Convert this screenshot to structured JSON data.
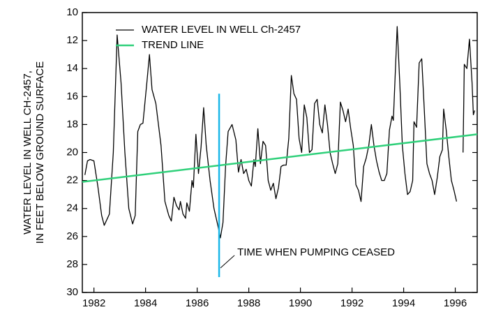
{
  "chart_data": {
    "type": "line",
    "y_label_lines": [
      "WATER LEVEL IN WELL CH-2457,",
      "IN FEET BELOW GROUND SURFACE"
    ],
    "xlim": [
      1981.55,
      1996.85
    ],
    "xticks": [
      1982,
      1984,
      1986,
      1988,
      1990,
      1992,
      1994,
      1996
    ],
    "ylim": [
      10,
      30
    ],
    "y_inverted": true,
    "yticks": [
      10,
      12,
      14,
      16,
      18,
      20,
      22,
      24,
      26,
      28,
      30
    ],
    "legend": "top-left",
    "series": [
      {
        "name": "WATER LEVEL IN WELL Ch-2457",
        "color": "#000000",
        "x": [
          1981.65,
          1981.75,
          1981.85,
          1982.0,
          1982.15,
          1982.3,
          1982.4,
          1982.6,
          1982.75,
          1982.9,
          1983.05,
          1983.2,
          1983.35,
          1983.5,
          1983.6,
          1983.7,
          1983.8,
          1983.9,
          1984.05,
          1984.15,
          1984.25,
          1984.4,
          1984.6,
          1984.75,
          1984.9,
          1985.0,
          1985.1,
          1985.2,
          1985.3,
          1985.35,
          1985.45,
          1985.55,
          1985.6,
          1985.7,
          1985.8,
          1985.85,
          1985.95,
          1986.05,
          1986.15,
          1986.25,
          1986.35,
          1986.5,
          1986.65,
          1986.8,
          1986.9,
          1987.0,
          1987.1,
          1987.2,
          1987.35,
          1987.5,
          1987.6,
          1987.7,
          1987.8,
          1987.9,
          1988.0,
          1988.1,
          1988.2,
          1988.25,
          1988.35,
          1988.45,
          1988.55,
          1988.65,
          1988.75,
          1988.85,
          1988.95,
          1989.05,
          1989.15,
          1989.25,
          1989.35,
          1989.45,
          1989.55,
          1989.65,
          1989.75,
          1989.85,
          1989.95,
          1990.05,
          1990.15,
          1990.25,
          1990.35,
          1990.45,
          1990.55,
          1990.65,
          1990.75,
          1990.85,
          1990.95,
          1991.05,
          1991.15,
          1991.25,
          1991.35,
          1991.45,
          1991.55,
          1991.65,
          1991.75,
          1991.85,
          1991.95,
          1992.05,
          1992.15,
          1992.25,
          1992.35,
          1992.45,
          1992.55,
          1992.65,
          1992.75,
          1992.85,
          1992.95,
          1993.05,
          1993.15,
          1993.25,
          1993.35,
          1993.45,
          1993.55,
          1993.6,
          1993.75,
          1993.85,
          1993.95,
          1994.05,
          1994.15,
          1994.25,
          1994.35,
          1994.4,
          1994.5,
          1994.6,
          1994.7,
          1994.8,
          1994.9,
          1995.0,
          1995.1,
          1995.2,
          1995.3,
          1995.4,
          1995.5,
          1995.55,
          1995.65,
          1995.75,
          1995.85,
          1995.95,
          1996.05,
          1996.2,
          1996.3,
          1996.35,
          1996.45,
          1996.55,
          1996.65,
          1996.7,
          1996.75
        ],
        "values": [
          21.6,
          20.6,
          20.5,
          20.6,
          22.4,
          24.5,
          25.2,
          24.4,
          20.0,
          11.6,
          15.0,
          20.0,
          24.0,
          25.1,
          24.5,
          18.5,
          18.0,
          17.9,
          15.0,
          13.0,
          15.5,
          16.5,
          19.5,
          23.5,
          24.5,
          24.9,
          23.2,
          23.8,
          24.1,
          23.5,
          24.4,
          24.7,
          23.6,
          24.2,
          22.0,
          22.5,
          18.7,
          21.5,
          19.6,
          16.8,
          19.5,
          22.0,
          24.0,
          25.2,
          26.1,
          25.0,
          21.0,
          18.5,
          18.0,
          19.1,
          21.4,
          20.5,
          21.5,
          21.2,
          22.0,
          22.4,
          20.5,
          21.0,
          18.3,
          20.8,
          19.2,
          19.5,
          22.0,
          22.7,
          22.2,
          23.3,
          22.5,
          21.0,
          20.9,
          20.9,
          19.0,
          14.5,
          15.8,
          16.2,
          19.0,
          20.0,
          16.6,
          17.5,
          20.0,
          19.8,
          16.5,
          16.2,
          18.0,
          18.6,
          16.6,
          18.0,
          20.0,
          20.8,
          21.5,
          20.8,
          16.4,
          17.0,
          17.8,
          16.9,
          18.3,
          19.5,
          22.3,
          22.7,
          23.5,
          21.0,
          20.4,
          19.5,
          18.0,
          19.5,
          20.6,
          21.4,
          22.0,
          22.0,
          21.5,
          18.4,
          17.4,
          17.7,
          11.0,
          15.0,
          19.5,
          21.5,
          23.0,
          22.8,
          22.0,
          17.8,
          18.2,
          13.6,
          13.3,
          17.0,
          20.8,
          21.5,
          22.0,
          23.0,
          21.8,
          20.3,
          19.8,
          16.9,
          18.4,
          20.3,
          22.0,
          22.7,
          23.5,
          null,
          20.0,
          13.7,
          14.0,
          11.9,
          15.0,
          17.3,
          17.0
        ]
      },
      {
        "name": "TREND LINE",
        "color": "#2fd07a",
        "x": [
          1981.55,
          1996.85
        ],
        "values": [
          22.1,
          18.7
        ]
      }
    ],
    "vline": {
      "x": 1986.85,
      "ymin": 15.8,
      "ymax": 28.9,
      "color": "#1ab6e8"
    },
    "annotation": "TIME WHEN PUMPING CEASED"
  }
}
